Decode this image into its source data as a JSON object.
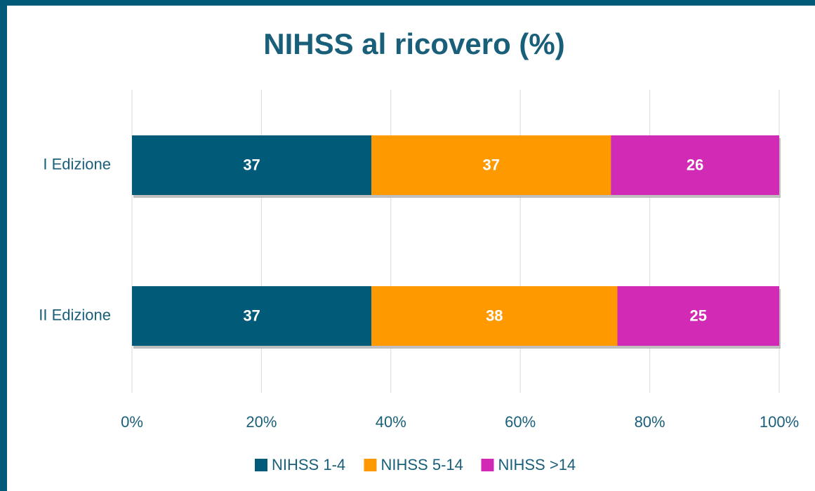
{
  "chart_data": {
    "type": "stacked_barh",
    "title": "NIHSS al ricovero (%)",
    "categories": [
      "I Edizione",
      "II Edizione"
    ],
    "series": [
      {
        "name": "NIHSS 1-4",
        "color": "#005a78",
        "values": [
          37,
          37
        ]
      },
      {
        "name": "NIHSS 5-14",
        "color": "#ff9900",
        "values": [
          37,
          38
        ]
      },
      {
        "name": "NIHSS >14",
        "color": "#d12ab4",
        "values": [
          26,
          25
        ]
      }
    ],
    "xlim": [
      0,
      100
    ],
    "xticks": [
      {
        "value": 0,
        "label": "0%"
      },
      {
        "value": 20,
        "label": "20%"
      },
      {
        "value": 40,
        "label": "40%"
      },
      {
        "value": 60,
        "label": "60%"
      },
      {
        "value": 80,
        "label": "80%"
      },
      {
        "value": 100,
        "label": "100%"
      }
    ],
    "grid": true,
    "legend": "bottom"
  }
}
